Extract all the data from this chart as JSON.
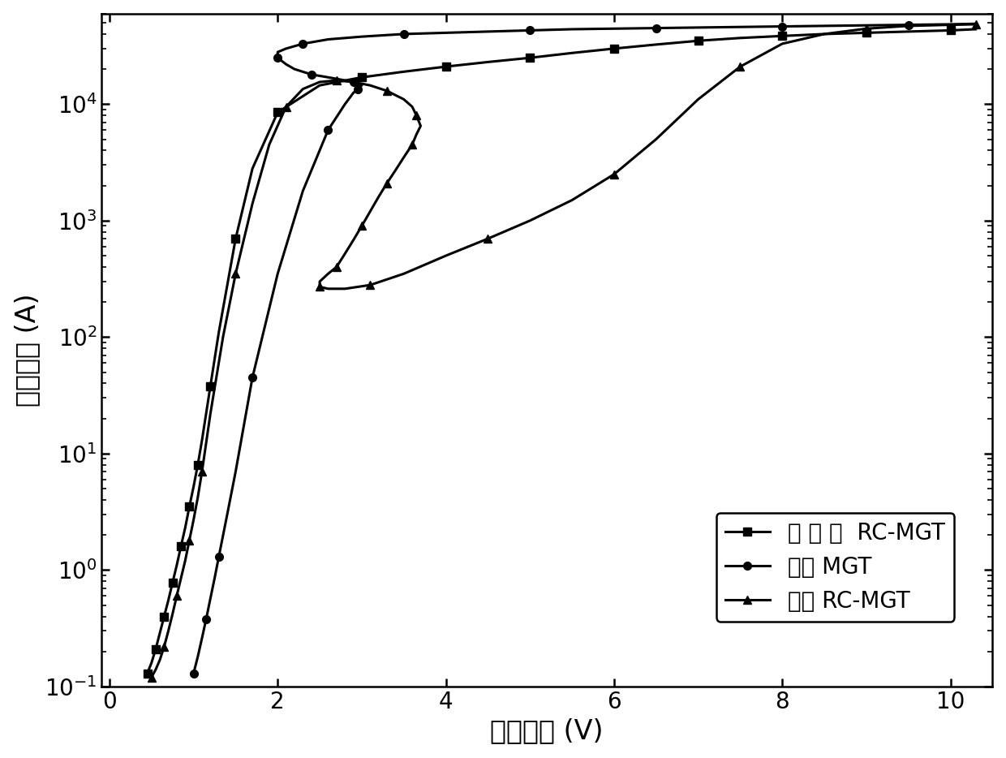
{
  "title": "",
  "xlabel": "阳极电压 (V)",
  "ylabel": "阳极电流 (A)",
  "xlim": [
    -0.1,
    10.5
  ],
  "ylim_log": [
    0.1,
    60000
  ],
  "xticks": [
    0,
    2,
    4,
    6,
    8,
    10
  ],
  "legend_labels": [
    "本 发 明  RC-MGT",
    "常规 MGT",
    "常规 RC-MGT"
  ],
  "background_color": "#ffffff",
  "line_color": "#000000",
  "linewidth": 2.2,
  "markersize": 7,
  "font_size_label": 24,
  "font_size_tick": 20,
  "font_size_legend": 20,
  "curve1_x": [
    0.45,
    0.5,
    0.55,
    0.6,
    0.65,
    0.7,
    0.75,
    0.8,
    0.85,
    0.9,
    0.95,
    1.0,
    1.05,
    1.1,
    1.2,
    1.3,
    1.5,
    1.7,
    2.0,
    2.5,
    3.0,
    3.5,
    4.0,
    4.5,
    5.0,
    5.5,
    6.0,
    6.5,
    7.0,
    7.5,
    8.0,
    8.5,
    9.0,
    9.5,
    10.0,
    10.3
  ],
  "curve1_y": [
    0.13,
    0.16,
    0.21,
    0.29,
    0.4,
    0.55,
    0.78,
    1.1,
    1.6,
    2.3,
    3.5,
    5.2,
    8.0,
    13,
    38,
    110,
    700,
    2800,
    8500,
    14500,
    17000,
    19000,
    21000,
    23000,
    25000,
    27500,
    30000,
    32500,
    35000,
    37000,
    38500,
    40000,
    41000,
    42000,
    43000,
    44000
  ],
  "curve2_x": [
    1.0,
    1.05,
    1.1,
    1.15,
    1.2,
    1.25,
    1.3,
    1.4,
    1.5,
    1.7,
    2.0,
    2.3,
    2.6,
    2.8,
    2.9,
    2.95,
    3.0,
    2.95,
    2.9,
    2.8,
    2.6,
    2.4,
    2.2,
    2.1,
    2.0,
    2.0,
    2.1,
    2.3,
    2.6,
    3.0,
    3.5,
    4.0,
    4.5,
    5.0,
    5.5,
    6.0,
    6.5,
    7.0,
    7.5,
    8.0,
    8.5,
    9.0,
    9.5,
    10.0,
    10.3
  ],
  "curve2_y": [
    0.13,
    0.18,
    0.26,
    0.38,
    0.57,
    0.85,
    1.3,
    3.0,
    7.0,
    45,
    350,
    1800,
    6000,
    10000,
    12500,
    13500,
    14500,
    15000,
    15500,
    16000,
    17000,
    18000,
    20000,
    22000,
    25000,
    28000,
    30000,
    33000,
    36000,
    38000,
    40000,
    41000,
    42000,
    43000,
    44000,
    44500,
    45000,
    45500,
    46000,
    46500,
    47000,
    47500,
    48000,
    48500,
    49000
  ],
  "curve3_x": [
    0.5,
    0.55,
    0.6,
    0.65,
    0.7,
    0.75,
    0.8,
    0.85,
    0.9,
    0.95,
    1.0,
    1.05,
    1.1,
    1.2,
    1.35,
    1.5,
    1.7,
    1.9,
    2.1,
    2.3,
    2.5,
    2.7,
    2.9,
    3.1,
    3.3,
    3.5,
    3.6,
    3.65,
    3.7,
    3.65,
    3.6,
    3.5,
    3.4,
    3.3,
    3.2,
    3.1,
    3.0,
    2.9,
    2.8,
    2.7,
    2.6,
    2.5,
    2.5,
    2.6,
    2.8,
    3.1,
    3.5,
    4.0,
    4.5,
    5.0,
    5.5,
    6.0,
    6.5,
    7.0,
    7.5,
    8.0,
    8.5,
    9.0,
    9.5,
    10.0,
    10.3
  ],
  "curve3_y": [
    0.12,
    0.14,
    0.17,
    0.22,
    0.3,
    0.42,
    0.6,
    0.85,
    1.2,
    1.8,
    2.7,
    4.2,
    7.0,
    22,
    100,
    350,
    1400,
    4500,
    9500,
    13500,
    15500,
    16000,
    15500,
    14500,
    13000,
    11000,
    9500,
    8000,
    6500,
    5500,
    4500,
    3500,
    2700,
    2100,
    1600,
    1200,
    900,
    680,
    520,
    400,
    350,
    300,
    270,
    260,
    260,
    280,
    350,
    500,
    700,
    1000,
    1500,
    2500,
    5000,
    11000,
    21000,
    33000,
    40000,
    44500,
    47000,
    48000,
    48500
  ]
}
